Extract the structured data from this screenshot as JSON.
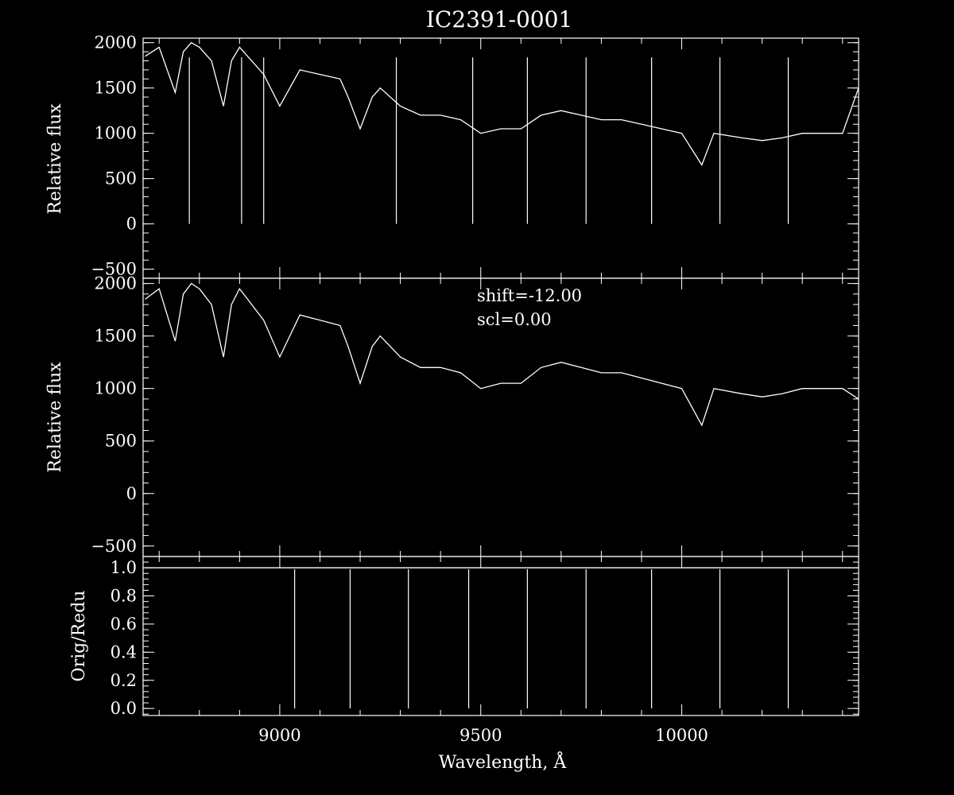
{
  "figure": {
    "title": "IC2391-0001",
    "xlabel": "Wavelength, Å",
    "x_ticks": [
      9000,
      9500,
      10000
    ],
    "xlim": [
      8660,
      10440
    ],
    "colors": {
      "background": "#000000",
      "foreground": "#ffffff"
    }
  },
  "chart_data": [
    {
      "type": "line",
      "panel": "top",
      "ylabel": "Relative flux",
      "ylim": [
        -600,
        2050
      ],
      "y_ticks": [
        -500,
        0,
        500,
        1000,
        1500,
        2000
      ],
      "grid": false,
      "series": [
        {
          "x": [
            8665,
            8700,
            8740,
            8760,
            8780,
            8800,
            8830,
            8860,
            8880,
            8900,
            8920,
            8960,
            9000,
            9050,
            9100,
            9150,
            9170,
            9200,
            9230,
            9250,
            9300,
            9350,
            9400,
            9450,
            9500,
            9550,
            9600,
            9650,
            9700,
            9750,
            9800,
            9850,
            9900,
            9950,
            10000,
            10050,
            10080,
            10150,
            10200,
            10250,
            10300,
            10350,
            10400,
            10440
          ],
          "y": [
            1850,
            1950,
            1450,
            1900,
            2000,
            1950,
            1800,
            1300,
            1800,
            1950,
            1850,
            1650,
            1300,
            1700,
            1650,
            1600,
            1400,
            1050,
            1400,
            1500,
            1300,
            1200,
            1200,
            1150,
            1000,
            1050,
            1050,
            1200,
            1250,
            1200,
            1150,
            1150,
            1100,
            1050,
            1000,
            650,
            1000,
            950,
            920,
            950,
            1000,
            1000,
            1000,
            1500
          ]
        }
      ],
      "absorption_lines_to_zero": [
        8775,
        8905,
        8960,
        9290,
        9480,
        9616,
        9762,
        9925,
        10095,
        10265
      ]
    },
    {
      "type": "line",
      "panel": "middle",
      "ylabel": "Relative flux",
      "ylim": [
        -600,
        2050
      ],
      "y_ticks": [
        -500,
        0,
        500,
        1000,
        1500,
        2000
      ],
      "annotations": [
        "shift=-12.00",
        "scl=0.00"
      ],
      "grid": false,
      "series": [
        {
          "x": [
            8665,
            8700,
            8740,
            8760,
            8780,
            8800,
            8830,
            8860,
            8880,
            8900,
            8920,
            8960,
            9000,
            9050,
            9100,
            9150,
            9170,
            9200,
            9230,
            9250,
            9300,
            9350,
            9400,
            9450,
            9500,
            9550,
            9600,
            9650,
            9700,
            9750,
            9800,
            9850,
            9900,
            9950,
            10000,
            10050,
            10080,
            10150,
            10200,
            10250,
            10300,
            10350,
            10400,
            10440
          ],
          "y": [
            1850,
            1950,
            1450,
            1900,
            2000,
            1950,
            1800,
            1300,
            1800,
            1950,
            1850,
            1650,
            1300,
            1700,
            1650,
            1600,
            1400,
            1050,
            1400,
            1500,
            1300,
            1200,
            1200,
            1150,
            1000,
            1050,
            1050,
            1200,
            1250,
            1200,
            1150,
            1150,
            1100,
            1050,
            1000,
            650,
            1000,
            950,
            920,
            950,
            1000,
            1000,
            1000,
            900
          ]
        }
      ]
    },
    {
      "type": "line",
      "panel": "bottom",
      "ylabel": "Orig/Redu",
      "ylim": [
        -0.05,
        1.08
      ],
      "y_ticks": [
        "0.0",
        "0.2",
        "0.4",
        "0.6",
        "0.8",
        "1.0"
      ],
      "grid": false,
      "series": [
        {
          "x": [
            8665,
            9040,
            9170,
            9320,
            9470,
            9616,
            9762,
            9925,
            10095,
            10265,
            10440
          ],
          "y": [
            1.0,
            1.0,
            1.0,
            1.0,
            1.0,
            1.0,
            1.0,
            1.0,
            1.0,
            1.0,
            1.0
          ]
        }
      ],
      "drops_to_zero_at": [
        9037,
        9175,
        9320,
        9470,
        9616,
        9762,
        9925,
        10095,
        10265
      ]
    }
  ]
}
